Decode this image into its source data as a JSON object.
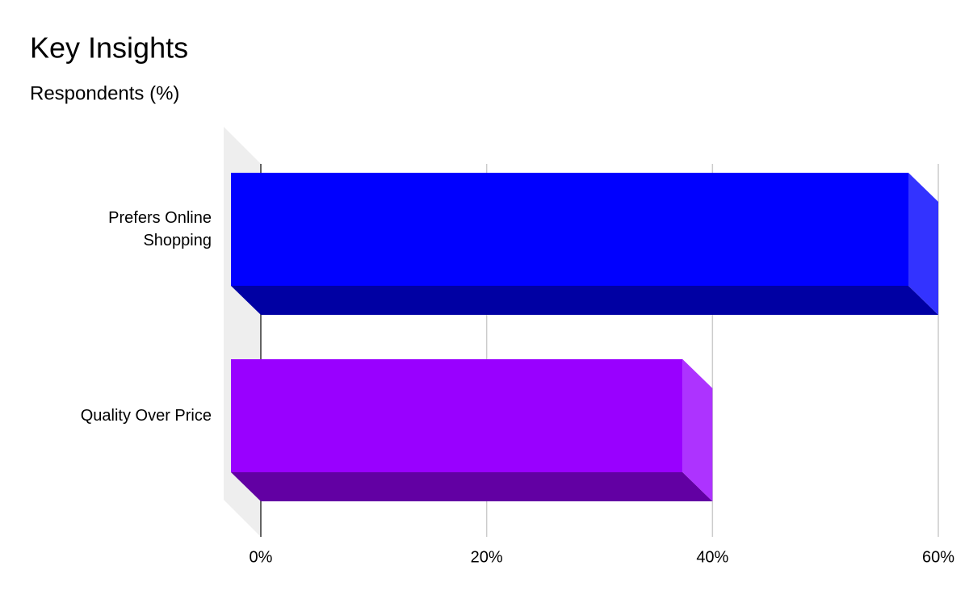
{
  "chart_data": {
    "type": "bar3d",
    "orientation": "horizontal",
    "title": "Key Insights",
    "subtitle": "Respondents (%)",
    "categories": [
      "Prefers Online Shopping",
      "Quality Over Price"
    ],
    "series": [
      {
        "values": [
          60,
          40
        ],
        "colors": [
          "#0000ff",
          "#9900ff"
        ]
      }
    ],
    "xlim": [
      0,
      60
    ],
    "xticks": [
      {
        "value": 0,
        "label": "0%"
      },
      {
        "value": 20,
        "label": "20%"
      },
      {
        "value": 40,
        "label": "40%"
      },
      {
        "value": 60,
        "label": "60%"
      }
    ],
    "grid": true
  }
}
